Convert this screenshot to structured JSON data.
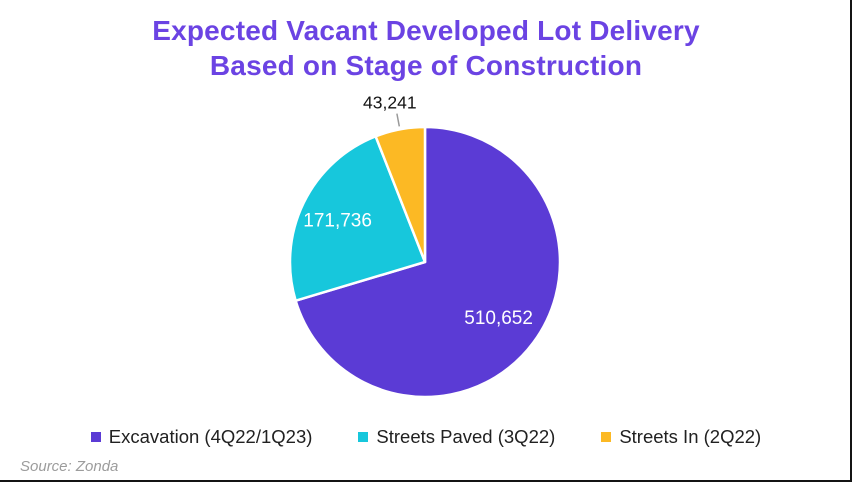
{
  "header": {
    "title_lines": [
      "Expected Vacant Developed Lot Delivery",
      "Based on Stage of Construction"
    ],
    "title_color": "#6B43E3"
  },
  "chart_data": {
    "type": "pie",
    "title": "Expected Vacant Developed Lot Delivery Based on Stage of Construction",
    "total": 725629,
    "slices": [
      {
        "label": "Excavation (4Q22/1Q23)",
        "value": 510652,
        "display_value": "510,652",
        "color": "#5B3BD5"
      },
      {
        "label": "Streets Paved (3Q22)",
        "value": 171736,
        "display_value": "171,736",
        "color": "#17C7DC"
      },
      {
        "label": "Streets In (2Q22)",
        "value": 43241,
        "display_value": "43,241",
        "color": "#FCB924"
      }
    ],
    "start_angle_deg": 0,
    "direction": "clockwise",
    "legend_position": "bottom",
    "inside_label_color": "#FFFFFF",
    "outside_label_color": "#141414",
    "leader_line_color": "#999999",
    "slice_separator_color": "#FFFFFF"
  },
  "legend": {
    "text_color": "#212121"
  },
  "footer": {
    "source_label": "Source: Zonda",
    "source_color": "#9C9C9C",
    "rule_color": "#141414"
  }
}
